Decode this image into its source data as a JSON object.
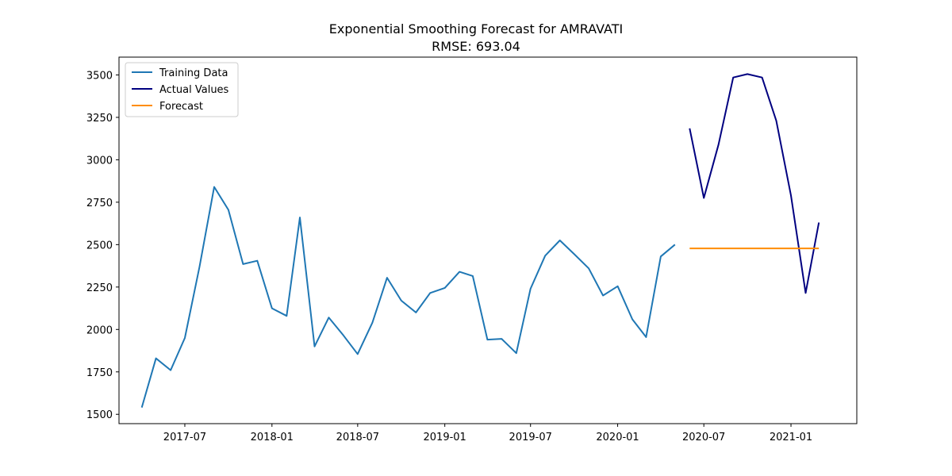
{
  "chart_data": {
    "type": "line",
    "title": "Exponential Smoothing Forecast for AMRAVATI",
    "subtitle": "RMSE: 693.04",
    "xlabel": "",
    "ylabel": "",
    "x_ticks": [
      "2017-07",
      "2018-01",
      "2018-07",
      "2019-01",
      "2019-07",
      "2020-01",
      "2020-07",
      "2021-01"
    ],
    "y_ticks": [
      1500,
      1750,
      2000,
      2250,
      2500,
      2750,
      3000,
      3250,
      3500
    ],
    "xlim": [
      "2017-02-12",
      "2021-05-20"
    ],
    "ylim": [
      1445,
      3605
    ],
    "grid": false,
    "legend_position": "top-left",
    "series": [
      {
        "name": "Training Data",
        "color": "#1f77b4",
        "points": [
          [
            "2017-04-01",
            1540
          ],
          [
            "2017-05-01",
            1830
          ],
          [
            "2017-06-01",
            1760
          ],
          [
            "2017-07-01",
            1950
          ],
          [
            "2017-08-01",
            2370
          ],
          [
            "2017-09-01",
            2840
          ],
          [
            "2017-10-01",
            2705
          ],
          [
            "2017-11-01",
            2385
          ],
          [
            "2017-12-01",
            2405
          ],
          [
            "2018-01-01",
            2125
          ],
          [
            "2018-02-01",
            2080
          ],
          [
            "2018-03-01",
            2660
          ],
          [
            "2018-04-01",
            1900
          ],
          [
            "2018-05-01",
            2070
          ],
          [
            "2018-06-01",
            1965
          ],
          [
            "2018-07-01",
            1855
          ],
          [
            "2018-08-01",
            2040
          ],
          [
            "2018-09-01",
            2305
          ],
          [
            "2018-10-01",
            2170
          ],
          [
            "2018-11-01",
            2100
          ],
          [
            "2018-12-01",
            2215
          ],
          [
            "2019-01-01",
            2245
          ],
          [
            "2019-02-01",
            2340
          ],
          [
            "2019-03-01",
            2315
          ],
          [
            "2019-04-01",
            1940
          ],
          [
            "2019-05-01",
            1945
          ],
          [
            "2019-06-01",
            1860
          ],
          [
            "2019-07-01",
            2240
          ],
          [
            "2019-08-01",
            2435
          ],
          [
            "2019-09-01",
            2525
          ],
          [
            "2019-10-01",
            2445
          ],
          [
            "2019-11-01",
            2360
          ],
          [
            "2019-12-01",
            2200
          ],
          [
            "2020-01-01",
            2255
          ],
          [
            "2020-02-01",
            2060
          ],
          [
            "2020-03-01",
            1955
          ],
          [
            "2020-04-01",
            2430
          ],
          [
            "2020-05-01",
            2500
          ]
        ]
      },
      {
        "name": "Actual Values",
        "color": "#000080",
        "points": [
          [
            "2020-06-01",
            3185
          ],
          [
            "2020-07-01",
            2775
          ],
          [
            "2020-08-01",
            3090
          ],
          [
            "2020-09-01",
            3485
          ],
          [
            "2020-10-01",
            3505
          ],
          [
            "2020-11-01",
            3485
          ],
          [
            "2020-12-01",
            3230
          ],
          [
            "2021-01-01",
            2790
          ],
          [
            "2021-02-01",
            2215
          ],
          [
            "2021-03-01",
            2630
          ]
        ]
      },
      {
        "name": "Forecast",
        "color": "#ff8c00",
        "points": [
          [
            "2020-06-01",
            2478
          ],
          [
            "2020-07-01",
            2478
          ],
          [
            "2020-08-01",
            2478
          ],
          [
            "2020-09-01",
            2478
          ],
          [
            "2020-10-01",
            2478
          ],
          [
            "2020-11-01",
            2478
          ],
          [
            "2020-12-01",
            2478
          ],
          [
            "2021-01-01",
            2478
          ],
          [
            "2021-02-01",
            2478
          ],
          [
            "2021-03-01",
            2478
          ]
        ]
      }
    ]
  }
}
